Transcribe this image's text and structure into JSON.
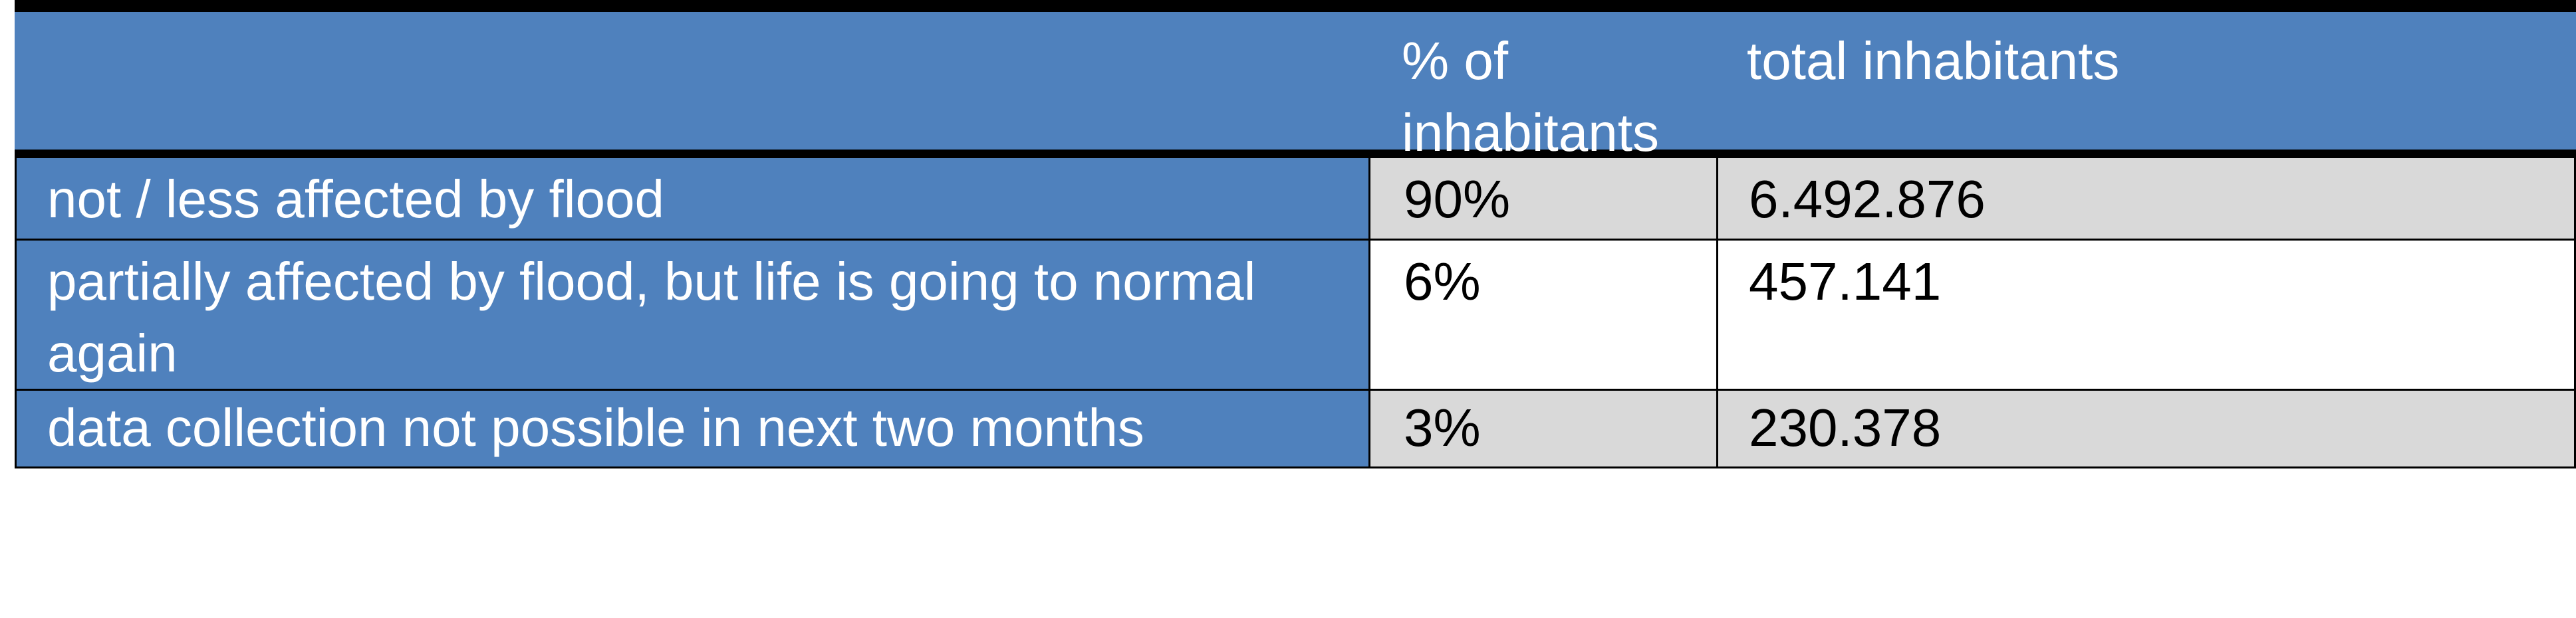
{
  "table": {
    "headers": [
      "",
      "% of inhabitants",
      "total inhabitants"
    ],
    "rows": [
      {
        "label": "not / less affected  by flood",
        "pct": "90%",
        "total": "6.492.876"
      },
      {
        "label": "partially affected by flood, but life is going to normal again",
        "pct": "6%",
        "total": "457.141"
      },
      {
        "label": "data collection not possible in next two months",
        "pct": "3%",
        "total": "230.378"
      }
    ]
  },
  "colors": {
    "header_blue": "#4f81bd",
    "row_gray": "#d9d9d9",
    "text_white": "#ffffff",
    "rule_black": "#000000"
  }
}
